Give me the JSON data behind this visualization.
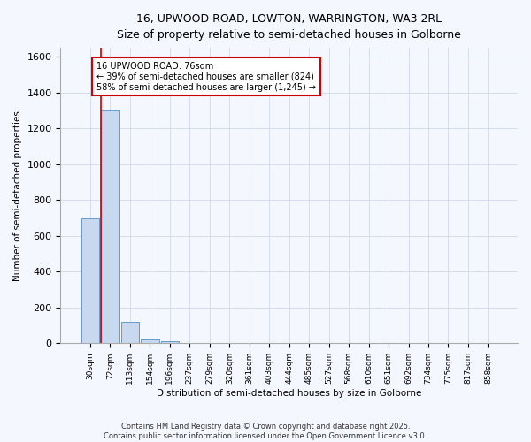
{
  "title_line1": "16, UPWOOD ROAD, LOWTON, WARRINGTON, WA3 2RL",
  "title_line2": "Size of property relative to semi-detached houses in Golborne",
  "xlabel": "Distribution of semi-detached houses by size in Golborne",
  "ylabel": "Number of semi-detached properties",
  "bar_labels": [
    "30sqm",
    "72sqm",
    "113sqm",
    "154sqm",
    "196sqm",
    "237sqm",
    "279sqm",
    "320sqm",
    "361sqm",
    "403sqm",
    "444sqm",
    "485sqm",
    "527sqm",
    "568sqm",
    "610sqm",
    "651sqm",
    "692sqm",
    "734sqm",
    "775sqm",
    "817sqm",
    "858sqm"
  ],
  "bar_values": [
    700,
    1300,
    120,
    20,
    10,
    0,
    0,
    0,
    0,
    0,
    0,
    0,
    0,
    0,
    0,
    0,
    0,
    0,
    0,
    0,
    0
  ],
  "bar_color": "#c8d8ee",
  "bar_edge_color": "#6699cc",
  "ylim": [
    0,
    1650
  ],
  "annotation_line1": "16 UPWOOD ROAD: 76sqm",
  "annotation_line2": "← 39% of semi-detached houses are smaller (824)",
  "annotation_line3": "58% of semi-detached houses are larger (1,245) →",
  "vline_color": "#cc0000",
  "annotation_box_edge": "#cc0000",
  "background_color": "#f5f7ff",
  "grid_color": "#d0d8f0",
  "footer_line1": "Contains HM Land Registry data © Crown copyright and database right 2025.",
  "footer_line2": "Contains public sector information licensed under the Open Government Licence v3.0."
}
